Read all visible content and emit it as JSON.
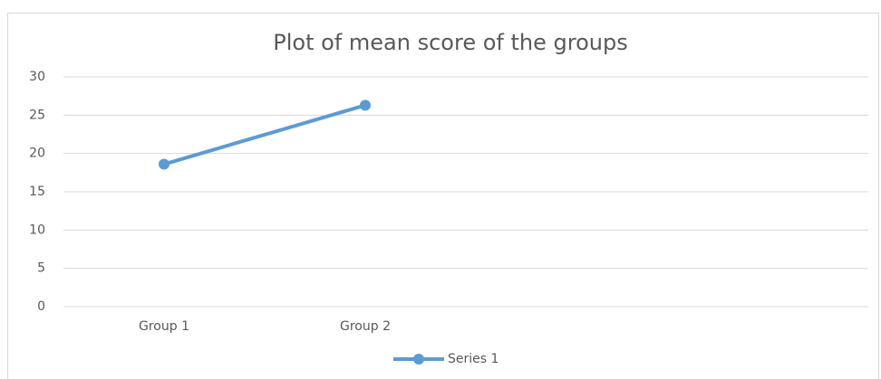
{
  "chart_data": {
    "type": "line",
    "title": "Plot of mean score of the groups",
    "categories": [
      "Group 1",
      "Group 2",
      null,
      null
    ],
    "series": [
      {
        "name": "Series 1",
        "color": "#5b9bd5",
        "values": [
          18.6,
          26.3,
          null,
          null
        ]
      }
    ],
    "ylim": [
      0,
      30
    ],
    "yticks": [
      0,
      5,
      10,
      15,
      20,
      25,
      30
    ],
    "grid": true,
    "legend": "bottom"
  }
}
